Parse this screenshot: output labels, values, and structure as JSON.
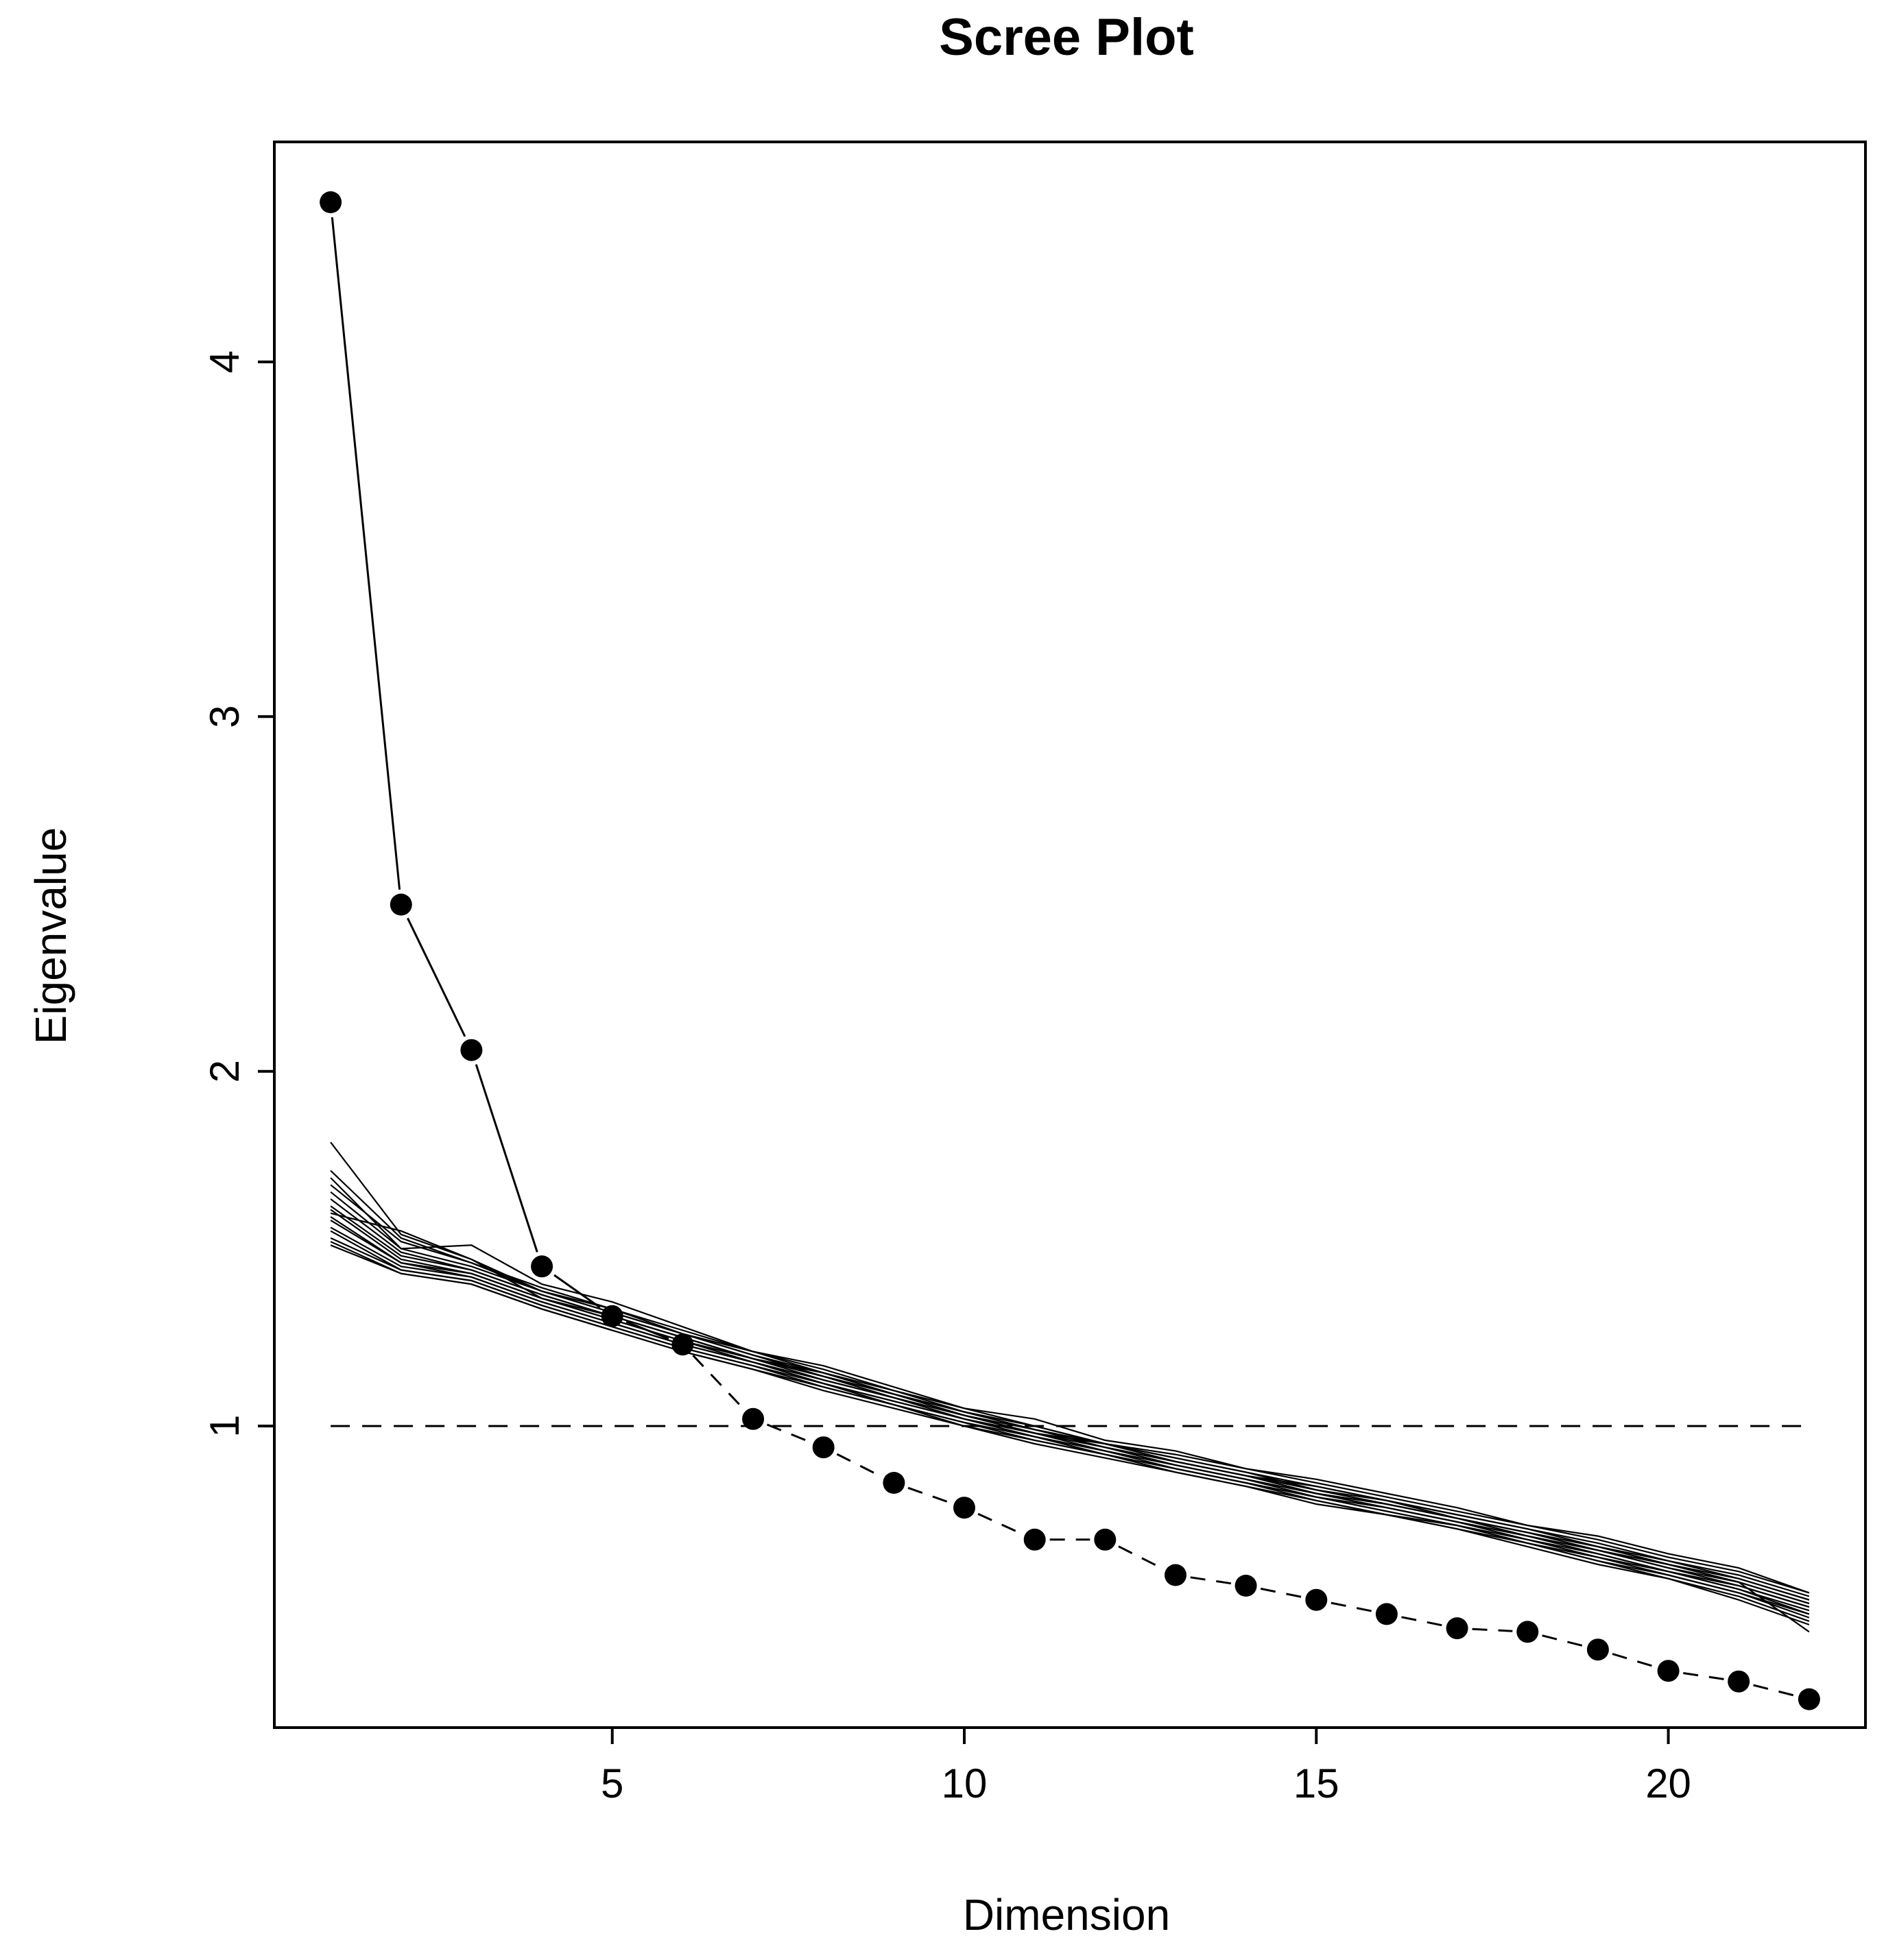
{
  "chart_data": {
    "type": "line",
    "title": "Scree Plot",
    "xlabel": "Dimension",
    "ylabel": "Eigenvalue",
    "xlim": [
      0.2,
      22.8
    ],
    "ylim": [
      0.15,
      4.62
    ],
    "x_ticks": [
      5,
      10,
      15,
      20
    ],
    "y_ticks": [
      1,
      2,
      3,
      4
    ],
    "grid": false,
    "legend": "none",
    "colors": {
      "line": "#000000",
      "marker": "#000000",
      "frame": "#000000"
    },
    "reference_line": {
      "y": 1,
      "style": "dashed"
    },
    "observed": {
      "x": [
        1,
        2,
        3,
        4,
        5,
        6,
        7,
        8,
        9,
        10,
        11,
        12,
        13,
        14,
        15,
        16,
        17,
        18,
        19,
        20,
        21,
        22
      ],
      "values": [
        4.45,
        2.47,
        2.06,
        1.45,
        1.31,
        1.23,
        1.02,
        0.94,
        0.84,
        0.77,
        0.68,
        0.68,
        0.58,
        0.55,
        0.51,
        0.47,
        0.43,
        0.42,
        0.37,
        0.31,
        0.28,
        0.23
      ],
      "solid_through": 4,
      "dashed_from": 7
    },
    "simulated": [
      [
        1.8,
        1.54,
        1.47,
        1.38,
        1.33,
        1.27,
        1.21,
        1.16,
        1.1,
        1.05,
        1.0,
        0.95,
        0.92,
        0.88,
        0.84,
        0.8,
        0.76,
        0.72,
        0.68,
        0.63,
        0.59,
        0.53
      ],
      [
        1.72,
        1.53,
        1.46,
        1.39,
        1.33,
        1.26,
        1.21,
        1.15,
        1.1,
        1.04,
        1.0,
        0.95,
        0.91,
        0.87,
        0.83,
        0.79,
        0.75,
        0.71,
        0.67,
        0.62,
        0.58,
        0.52
      ],
      [
        1.68,
        1.52,
        1.46,
        1.38,
        1.32,
        1.26,
        1.2,
        1.15,
        1.09,
        1.04,
        0.99,
        0.95,
        0.91,
        0.87,
        0.82,
        0.79,
        0.75,
        0.71,
        0.66,
        0.62,
        0.57,
        0.51
      ],
      [
        1.66,
        1.5,
        1.45,
        1.38,
        1.32,
        1.26,
        1.2,
        1.14,
        1.09,
        1.04,
        0.99,
        0.95,
        0.9,
        0.86,
        0.82,
        0.78,
        0.74,
        0.7,
        0.66,
        0.61,
        0.57,
        0.51
      ],
      [
        1.64,
        1.49,
        1.44,
        1.37,
        1.31,
        1.25,
        1.19,
        1.14,
        1.09,
        1.03,
        0.99,
        0.94,
        0.9,
        0.86,
        0.82,
        0.78,
        0.74,
        0.7,
        0.65,
        0.61,
        0.56,
        0.5
      ],
      [
        1.62,
        1.48,
        1.44,
        1.37,
        1.31,
        1.25,
        1.19,
        1.14,
        1.08,
        1.03,
        0.98,
        0.94,
        0.9,
        0.86,
        0.81,
        0.78,
        0.74,
        0.69,
        0.65,
        0.6,
        0.56,
        0.5
      ],
      [
        1.61,
        1.47,
        1.43,
        1.36,
        1.3,
        1.24,
        1.19,
        1.13,
        1.08,
        1.03,
        0.98,
        0.94,
        0.89,
        0.85,
        0.81,
        0.77,
        0.73,
        0.69,
        0.65,
        0.6,
        0.55,
        0.49
      ],
      [
        1.59,
        1.46,
        1.43,
        1.36,
        1.3,
        1.24,
        1.18,
        1.13,
        1.08,
        1.02,
        0.98,
        0.93,
        0.89,
        0.85,
        0.81,
        0.77,
        0.73,
        0.69,
        0.64,
        0.59,
        0.55,
        0.49
      ],
      [
        1.58,
        1.46,
        1.42,
        1.35,
        1.29,
        1.23,
        1.18,
        1.12,
        1.07,
        1.02,
        0.97,
        0.93,
        0.89,
        0.85,
        0.8,
        0.77,
        0.73,
        0.68,
        0.64,
        0.59,
        0.54,
        0.48
      ],
      [
        1.56,
        1.45,
        1.42,
        1.35,
        1.29,
        1.23,
        1.18,
        1.12,
        1.07,
        1.02,
        0.97,
        0.93,
        0.88,
        0.84,
        0.8,
        0.76,
        0.72,
        0.68,
        0.63,
        0.59,
        0.54,
        0.47
      ],
      [
        1.55,
        1.44,
        1.41,
        1.34,
        1.28,
        1.22,
        1.17,
        1.12,
        1.06,
        1.01,
        0.97,
        0.92,
        0.88,
        0.84,
        0.8,
        0.76,
        0.72,
        0.67,
        0.63,
        0.58,
        0.53,
        0.47
      ],
      [
        1.53,
        1.44,
        1.41,
        1.34,
        1.28,
        1.22,
        1.17,
        1.11,
        1.06,
        1.01,
        0.96,
        0.92,
        0.88,
        0.84,
        0.79,
        0.75,
        0.72,
        0.67,
        0.62,
        0.58,
        0.53,
        0.46
      ],
      [
        1.52,
        1.43,
        1.4,
        1.33,
        1.27,
        1.21,
        1.16,
        1.11,
        1.06,
        1.0,
        0.96,
        0.92,
        0.87,
        0.83,
        0.79,
        0.75,
        0.71,
        0.67,
        0.62,
        0.57,
        0.52,
        0.45
      ],
      [
        1.51,
        1.43,
        1.4,
        1.33,
        1.27,
        1.21,
        1.16,
        1.1,
        1.05,
        1.0,
        0.95,
        0.91,
        0.87,
        0.83,
        0.78,
        0.75,
        0.71,
        0.66,
        0.61,
        0.57,
        0.51,
        0.44
      ],
      [
        1.7,
        1.5,
        1.51,
        1.4,
        1.35,
        1.28,
        1.21,
        1.17,
        1.11,
        1.05,
        1.02,
        0.96,
        0.93,
        0.88,
        0.85,
        0.81,
        0.77,
        0.72,
        0.69,
        0.64,
        0.6,
        0.53
      ],
      [
        1.6,
        1.55,
        1.47,
        1.36,
        1.31,
        1.25,
        1.19,
        1.15,
        1.09,
        1.03,
        0.98,
        0.95,
        0.9,
        0.86,
        0.83,
        0.79,
        0.74,
        0.7,
        0.66,
        0.61,
        0.56,
        0.42
      ]
    ]
  }
}
